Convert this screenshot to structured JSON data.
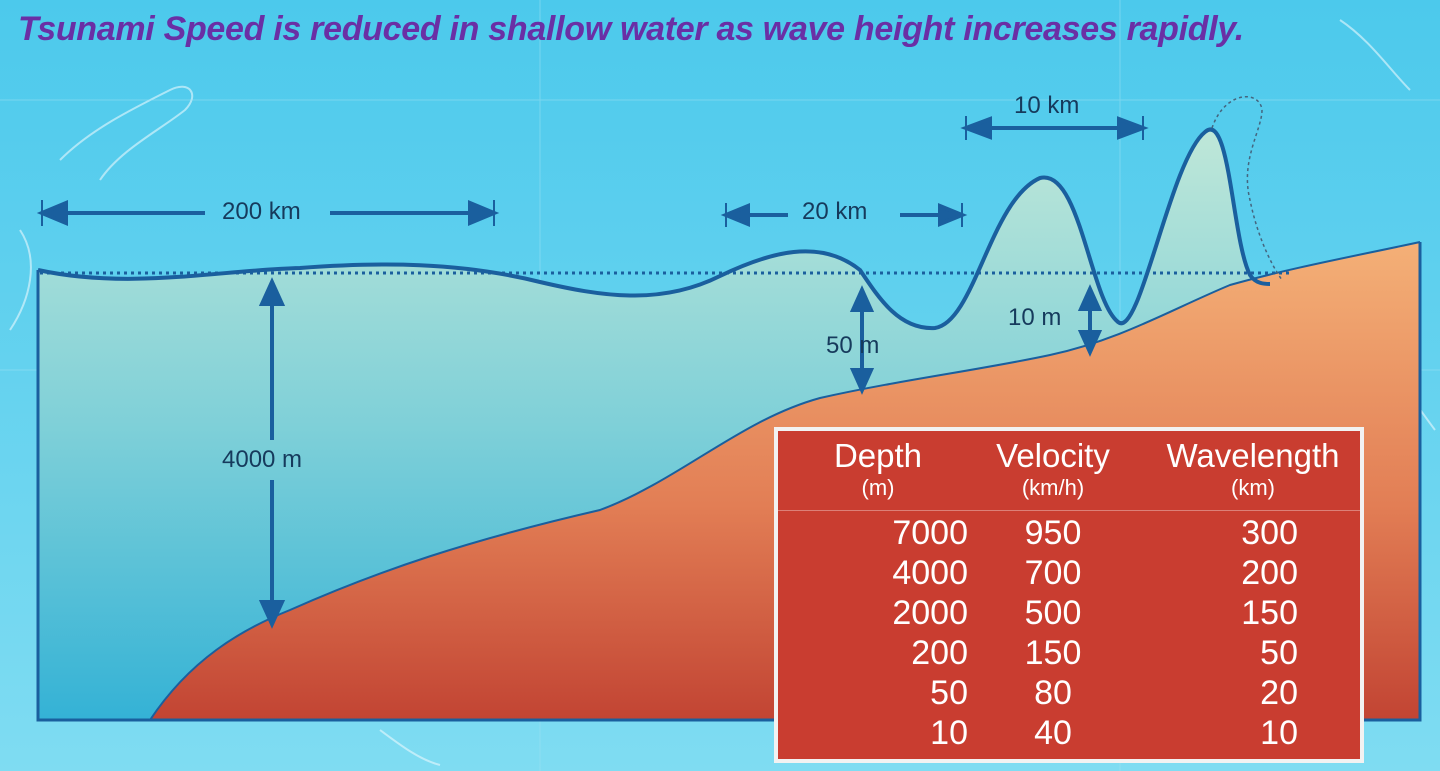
{
  "title": "Tsunami Speed is reduced in shallow water as wave height increases rapidly.",
  "labels": {
    "wl_200": "200 km",
    "wl_20": "20 km",
    "wl_10": "10 km",
    "depth_4000": "4000 m",
    "depth_50": "50 m",
    "depth_10": "10 m"
  },
  "table": {
    "headers": [
      {
        "name": "Depth",
        "unit": "(m)"
      },
      {
        "name": "Velocity",
        "unit": "(km/h)"
      },
      {
        "name": "Wavelength",
        "unit": "(km)"
      }
    ],
    "rows": [
      {
        "depth": "7000",
        "velocity": "950",
        "wavelength": "300"
      },
      {
        "depth": "4000",
        "velocity": "700",
        "wavelength": "200"
      },
      {
        "depth": "2000",
        "velocity": "500",
        "wavelength": "150"
      },
      {
        "depth": "200",
        "velocity": "150",
        "wavelength": "50"
      },
      {
        "depth": "50",
        "velocity": "80",
        "wavelength": "20"
      },
      {
        "depth": "10",
        "velocity": "40",
        "wavelength": "10"
      }
    ]
  },
  "colors": {
    "sky": "#5fd3ef",
    "water_top": "#b9e6d6",
    "water_bottom": "#3ab6d8",
    "land_top": "#f2a86a",
    "land_bottom": "#c94a34",
    "wave": "#1a5f9e",
    "title": "#6a2fa5",
    "table_bg": "#c93d30"
  }
}
